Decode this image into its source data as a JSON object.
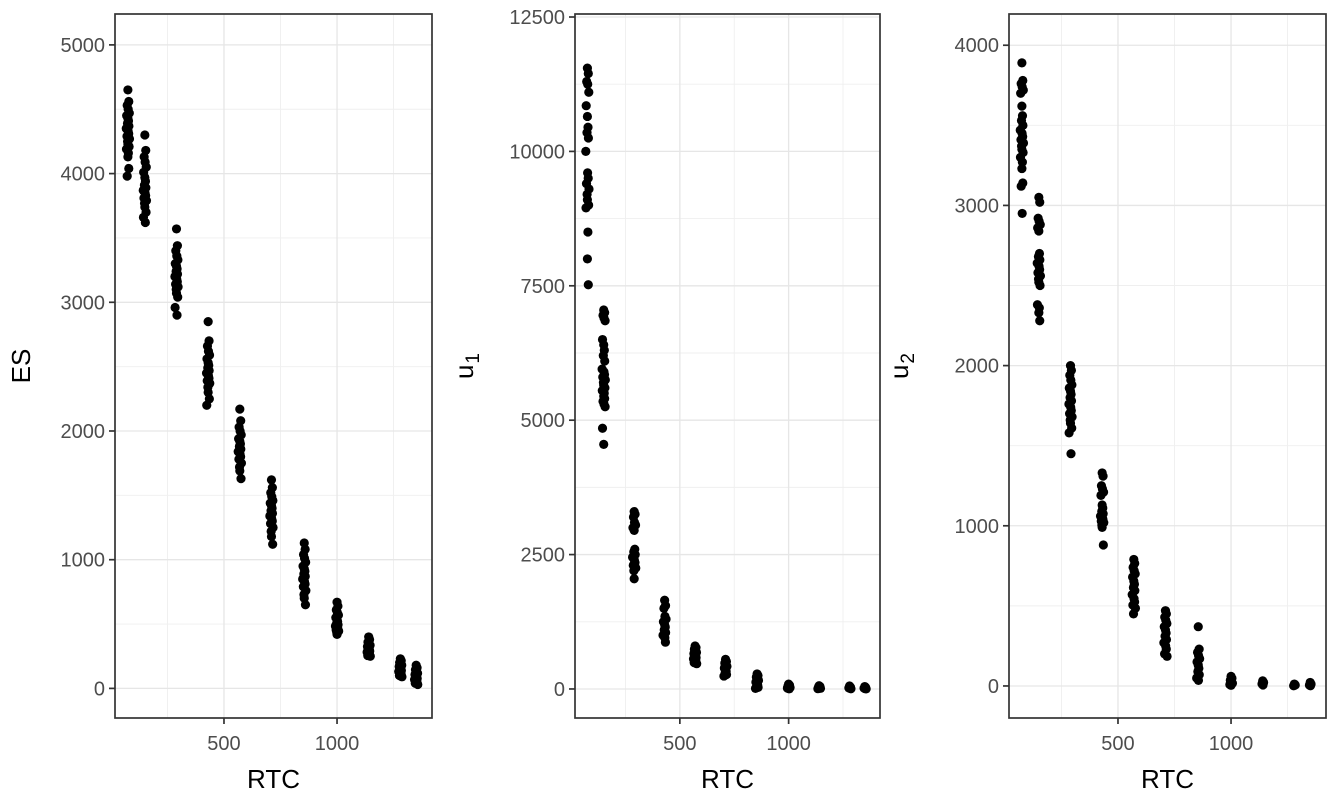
{
  "figure": {
    "background": "#FFFFFF",
    "panel_border_color": "#333333",
    "grid_major_color": "#E6E6E6",
    "grid_minor_color": "#EFEFEF",
    "tick_color": "#333333",
    "tick_label_color": "#4D4D4D",
    "axis_title_color": "#000000",
    "point_color": "#000000"
  },
  "chart_data": [
    {
      "type": "scatter",
      "title": "",
      "xlabel": "RTC",
      "ylabel": "ES",
      "ylabel_sub": "",
      "xlim": [
        18,
        1420
      ],
      "ylim": [
        -230,
        5240
      ],
      "x_major_ticks": [
        500,
        1000
      ],
      "x_minor_ticks": [
        250,
        750,
        1250
      ],
      "y_major_ticks": [
        0,
        1000,
        2000,
        3000,
        4000,
        5000
      ],
      "y_minor_ticks": [
        500,
        1500,
        2500,
        3500,
        4500
      ],
      "grid": true,
      "legend": "none",
      "clusters": [
        {
          "x": 75,
          "y": [
            4650,
            4560,
            4530,
            4500,
            4470,
            4450,
            4430,
            4410,
            4390,
            4370,
            4350,
            4330,
            4310,
            4290,
            4270,
            4250,
            4230,
            4210,
            4190,
            4160,
            4130,
            4040,
            3980
          ]
        },
        {
          "x": 150,
          "y": [
            4300,
            4180,
            4130,
            4090,
            4050,
            4010,
            3970,
            3940,
            3910,
            3890,
            3870,
            3850,
            3830,
            3810,
            3790,
            3770,
            3740,
            3700,
            3660,
            3620
          ]
        },
        {
          "x": 290,
          "y": [
            3570,
            3440,
            3400,
            3360,
            3330,
            3300,
            3280,
            3260,
            3240,
            3220,
            3200,
            3180,
            3160,
            3140,
            3120,
            3100,
            3070,
            3040,
            2960,
            2900
          ]
        },
        {
          "x": 430,
          "y": [
            2850,
            2700,
            2660,
            2620,
            2590,
            2560,
            2530,
            2510,
            2490,
            2470,
            2450,
            2430,
            2410,
            2390,
            2370,
            2340,
            2300,
            2250,
            2200
          ]
        },
        {
          "x": 570,
          "y": [
            2170,
            2080,
            2030,
            2000,
            1970,
            1940,
            1920,
            1900,
            1880,
            1860,
            1840,
            1820,
            1800,
            1780,
            1750,
            1720,
            1690,
            1630
          ]
        },
        {
          "x": 710,
          "y": [
            1620,
            1560,
            1520,
            1490,
            1460,
            1440,
            1420,
            1400,
            1380,
            1360,
            1340,
            1320,
            1300,
            1280,
            1250,
            1220,
            1180,
            1120
          ]
        },
        {
          "x": 855,
          "y": [
            1130,
            1080,
            1040,
            1010,
            980,
            950,
            930,
            910,
            890,
            870,
            850,
            830,
            810,
            790,
            760,
            730,
            700,
            650
          ]
        },
        {
          "x": 1000,
          "y": [
            670,
            640,
            610,
            590,
            570,
            550,
            535,
            520,
            505,
            495,
            485,
            475,
            465,
            455,
            445,
            435,
            420
          ]
        },
        {
          "x": 1140,
          "y": [
            400,
            380,
            360,
            345,
            335,
            325,
            315,
            305,
            298,
            290,
            283,
            275,
            265,
            255,
            250
          ]
        },
        {
          "x": 1280,
          "y": [
            230,
            215,
            200,
            190,
            180,
            170,
            160,
            152,
            145,
            138,
            130,
            120,
            110,
            100,
            90
          ]
        },
        {
          "x": 1350,
          "y": [
            180,
            160,
            145,
            130,
            118,
            108,
            98,
            90,
            83,
            76,
            68,
            60,
            50,
            40,
            30
          ]
        }
      ]
    },
    {
      "type": "scatter",
      "title": "",
      "xlabel": "RTC",
      "ylabel": "u",
      "ylabel_sub": "1",
      "xlim": [
        18,
        1420
      ],
      "ylim": [
        -540,
        12556
      ],
      "x_major_ticks": [
        500,
        1000
      ],
      "x_minor_ticks": [
        250,
        750,
        1250
      ],
      "y_major_ticks": [
        0,
        2500,
        5000,
        7500,
        10000,
        12500
      ],
      "y_minor_ticks": [
        1250,
        3750,
        6250,
        8750,
        11250
      ],
      "grid": true,
      "legend": "none",
      "clusters": [
        {
          "x": 75,
          "y": [
            11550,
            11450,
            11300,
            11250,
            11100,
            10850,
            10650,
            10450,
            10350,
            10250,
            10000,
            9600,
            9500,
            9400,
            9300,
            9200,
            9100,
            9000,
            8950,
            8500,
            8000,
            7520
          ]
        },
        {
          "x": 150,
          "y": [
            7050,
            7000,
            6950,
            6900,
            6850,
            6500,
            6400,
            6300,
            6200,
            6100,
            5950,
            5900,
            5850,
            5800,
            5750,
            5700,
            5650,
            5600,
            5550,
            5500,
            5450,
            5400,
            5350,
            5300,
            5250,
            4850,
            4550
          ]
        },
        {
          "x": 290,
          "y": [
            3300,
            3250,
            3200,
            3100,
            3050,
            3000,
            2950,
            2600,
            2550,
            2500,
            2450,
            2400,
            2350,
            2300,
            2250,
            2200,
            2050
          ]
        },
        {
          "x": 430,
          "y": [
            1650,
            1550,
            1500,
            1350,
            1300,
            1250,
            1200,
            1150,
            1100,
            1050,
            1000,
            950,
            870
          ]
        },
        {
          "x": 570,
          "y": [
            800,
            770,
            740,
            710,
            680,
            660,
            640,
            620,
            600,
            580,
            560,
            540,
            520,
            490,
            470
          ]
        },
        {
          "x": 710,
          "y": [
            550,
            510,
            480,
            450,
            420,
            390,
            360,
            330,
            300,
            270,
            240
          ]
        },
        {
          "x": 855,
          "y": [
            280,
            250,
            220,
            190,
            160,
            130,
            100,
            75,
            50,
            30,
            10
          ]
        },
        {
          "x": 1000,
          "y": [
            90,
            70,
            50,
            35,
            25,
            15,
            8,
            3
          ]
        },
        {
          "x": 1140,
          "y": [
            60,
            45,
            30,
            20,
            12,
            5
          ]
        },
        {
          "x": 1280,
          "y": [
            55,
            35,
            20,
            10,
            4
          ]
        },
        {
          "x": 1350,
          "y": [
            45,
            28,
            15,
            7,
            2
          ]
        }
      ]
    },
    {
      "type": "scatter",
      "title": "",
      "xlabel": "RTC",
      "ylabel": "u",
      "ylabel_sub": "2",
      "xlim": [
        18,
        1420
      ],
      "ylim": [
        -200,
        4195
      ],
      "x_major_ticks": [
        500,
        1000
      ],
      "x_minor_ticks": [
        250,
        750,
        1250
      ],
      "y_major_ticks": [
        0,
        1000,
        2000,
        3000,
        4000
      ],
      "y_minor_ticks": [
        500,
        1500,
        2500,
        3500
      ],
      "grid": true,
      "legend": "none",
      "clusters": [
        {
          "x": 75,
          "y": [
            3890,
            3780,
            3760,
            3740,
            3720,
            3700,
            3620,
            3560,
            3530,
            3500,
            3470,
            3450,
            3430,
            3410,
            3390,
            3370,
            3350,
            3330,
            3300,
            3270,
            3230,
            3140,
            3120,
            2950
          ]
        },
        {
          "x": 150,
          "y": [
            3050,
            3020,
            2920,
            2900,
            2880,
            2860,
            2840,
            2700,
            2680,
            2660,
            2640,
            2620,
            2600,
            2580,
            2560,
            2540,
            2520,
            2500,
            2380,
            2360,
            2330,
            2280
          ]
        },
        {
          "x": 290,
          "y": [
            2000,
            1970,
            1940,
            1910,
            1880,
            1860,
            1840,
            1820,
            1800,
            1780,
            1760,
            1740,
            1720,
            1700,
            1680,
            1660,
            1640,
            1610,
            1580,
            1450
          ]
        },
        {
          "x": 430,
          "y": [
            1330,
            1310,
            1250,
            1230,
            1210,
            1190,
            1130,
            1110,
            1090,
            1075,
            1060,
            1050,
            1040,
            1030,
            1020,
            1005,
            990,
            880
          ]
        },
        {
          "x": 570,
          "y": [
            790,
            765,
            740,
            720,
            700,
            680,
            655,
            635,
            615,
            595,
            570,
            545,
            525,
            505,
            485,
            450
          ]
        },
        {
          "x": 710,
          "y": [
            470,
            450,
            430,
            410,
            390,
            370,
            350,
            330,
            310,
            290,
            270,
            250,
            230,
            200,
            185
          ]
        },
        {
          "x": 855,
          "y": [
            370,
            230,
            210,
            190,
            170,
            150,
            130,
            110,
            90,
            70,
            50,
            35
          ]
        },
        {
          "x": 1000,
          "y": [
            60,
            48,
            36,
            26,
            17,
            9,
            4
          ]
        },
        {
          "x": 1140,
          "y": [
            32,
            22,
            13,
            6
          ]
        },
        {
          "x": 1280,
          "y": [
            12,
            6,
            1
          ]
        },
        {
          "x": 1350,
          "y": [
            22,
            12,
            5,
            1
          ]
        }
      ]
    }
  ]
}
